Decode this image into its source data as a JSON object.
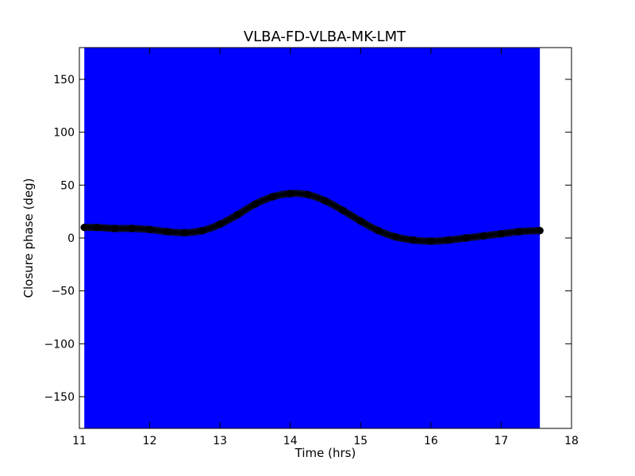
{
  "chart_data": {
    "type": "scatter",
    "title": "VLBA-FD-VLBA-MK-LMT",
    "xlabel": "Time (hrs)",
    "ylabel": "Closure phase (deg)",
    "xlim": [
      11,
      18
    ],
    "ylim": [
      -180,
      180
    ],
    "xticks": [
      11,
      12,
      13,
      14,
      15,
      16,
      17,
      18
    ],
    "xtick_labels": [
      "11",
      "12",
      "13",
      "14",
      "15",
      "16",
      "17",
      "18"
    ],
    "yticks": [
      -150,
      -100,
      -50,
      0,
      50,
      100,
      150
    ],
    "ytick_labels": [
      "−150",
      "−100",
      "−50",
      "0",
      "50",
      "100",
      "150"
    ],
    "grid": false,
    "error_band": {
      "x_start": 11.07,
      "x_end": 17.55,
      "y_low": -180,
      "y_high": 180,
      "color": "#0000ff"
    },
    "series": [
      {
        "marker_color": "#000000",
        "x": [
          11.07,
          11.25,
          11.5,
          11.75,
          12.0,
          12.25,
          12.5,
          12.75,
          13.0,
          13.25,
          13.5,
          13.75,
          14.0,
          14.25,
          14.5,
          14.75,
          15.0,
          15.25,
          15.5,
          15.75,
          16.0,
          16.25,
          16.5,
          16.75,
          17.0,
          17.25,
          17.55
        ],
        "y": [
          10,
          10,
          9,
          9,
          8,
          6,
          5,
          7,
          13,
          22,
          32,
          39,
          42,
          41,
          35,
          26,
          16,
          7,
          1,
          -2,
          -3,
          -2,
          0,
          2,
          4,
          6,
          7
        ]
      }
    ]
  }
}
